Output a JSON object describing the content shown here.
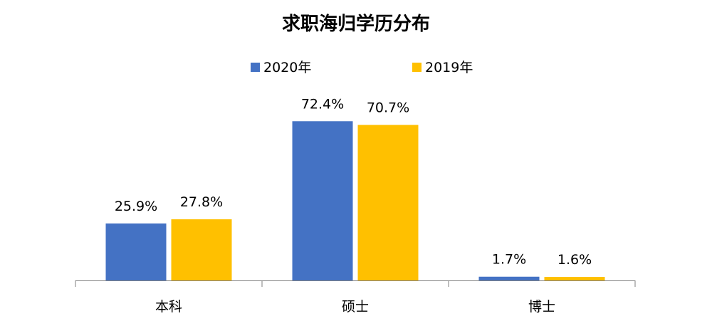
{
  "chart_data": {
    "type": "bar",
    "title": "求职海归学历分布",
    "categories": [
      "本科",
      "硕士",
      "博士"
    ],
    "series": [
      {
        "name": "2020年",
        "color": "#4472C4",
        "values": [
          25.9,
          72.4,
          1.7
        ],
        "labels": [
          "25.9%",
          "72.4%",
          "1.7%"
        ]
      },
      {
        "name": "2019年",
        "color": "#FFC000",
        "values": [
          27.8,
          70.7,
          1.6
        ],
        "labels": [
          "27.8%",
          "70.7%",
          "1.6%"
        ]
      }
    ],
    "ylim": [
      0,
      100
    ],
    "grid": false,
    "legend_position": "top-center",
    "xlabel": "",
    "ylabel": ""
  }
}
